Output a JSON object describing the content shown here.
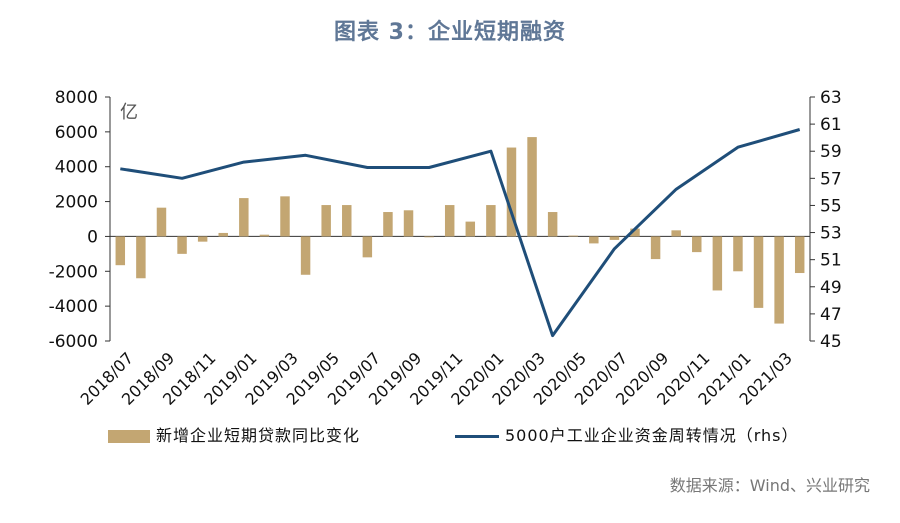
{
  "title": "图表 3：企业短期融资",
  "source": "数据来源：Wind、兴业研究",
  "colors": {
    "bar": "#c3a672",
    "line": "#1f4e79",
    "title": "#5f7796"
  },
  "chart_data": {
    "type": "bar+line",
    "unit_label": "亿",
    "categories": [
      "2018/07",
      "2018/08",
      "2018/09",
      "2018/10",
      "2018/11",
      "2018/12",
      "2019/01",
      "2019/02",
      "2019/03",
      "2019/04",
      "2019/05",
      "2019/06",
      "2019/07",
      "2019/08",
      "2019/09",
      "2019/10",
      "2019/11",
      "2019/12",
      "2020/01",
      "2020/02",
      "2020/03",
      "2020/04",
      "2020/05",
      "2020/06",
      "2020/07",
      "2020/08",
      "2020/09",
      "2020/10",
      "2020/11",
      "2020/12",
      "2021/01",
      "2021/02",
      "2021/03",
      "2021/04"
    ],
    "x_tick_labels": [
      "2018/07",
      "2018/09",
      "2018/11",
      "2019/01",
      "2019/03",
      "2019/05",
      "2019/07",
      "2019/09",
      "2019/11",
      "2020/01",
      "2020/03",
      "2020/05",
      "2020/07",
      "2020/09",
      "2020/11",
      "2021/01",
      "2021/03"
    ],
    "bar_series": {
      "name": "新增企业短期贷款同比变化",
      "axis": "left",
      "values": [
        -1650,
        -2400,
        1650,
        -1000,
        -300,
        200,
        2200,
        100,
        2300,
        -2200,
        1800,
        1800,
        -1200,
        1400,
        1500,
        -50,
        1800,
        850,
        1800,
        5100,
        5700,
        1400,
        50,
        -400,
        -200,
        450,
        -1300,
        350,
        -900,
        -3100,
        -2000,
        -4100,
        -5000,
        -2100
      ]
    },
    "line_series": {
      "name": "5000户工业企业资金周转情况（rhs）",
      "axis": "right",
      "points": [
        {
          "x": "2018/07",
          "y": 57.7
        },
        {
          "x": "2018/10",
          "y": 57.0
        },
        {
          "x": "2019/01",
          "y": 58.2
        },
        {
          "x": "2019/04",
          "y": 58.7
        },
        {
          "x": "2019/07",
          "y": 57.8
        },
        {
          "x": "2019/10",
          "y": 57.8
        },
        {
          "x": "2020/01",
          "y": 59.0
        },
        {
          "x": "2020/04",
          "y": 45.4
        },
        {
          "x": "2020/07",
          "y": 51.8
        },
        {
          "x": "2020/10",
          "y": 56.2
        },
        {
          "x": "2021/01",
          "y": 59.3
        },
        {
          "x": "2021/04",
          "y": 60.6
        }
      ]
    },
    "y_left": {
      "min": -6000,
      "max": 8000,
      "ticks": [
        -6000,
        -4000,
        -2000,
        0,
        2000,
        4000,
        6000,
        8000
      ]
    },
    "y_right": {
      "min": 45,
      "max": 63,
      "ticks": [
        45,
        47,
        49,
        51,
        53,
        55,
        57,
        59,
        61,
        63
      ]
    },
    "legend": {
      "position": "bottom"
    }
  }
}
